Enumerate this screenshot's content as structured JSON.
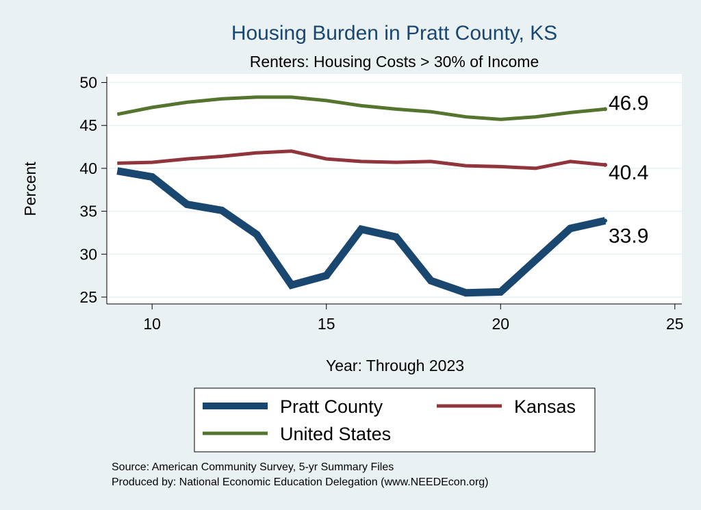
{
  "chart_data": {
    "type": "line",
    "title": "Housing Burden in Pratt County, KS",
    "subtitle": "Renters: Housing Costs > 30% of Income",
    "xlabel": "Year: Through 2023",
    "ylabel": "Percent",
    "xlim": [
      8.7,
      25.2
    ],
    "ylim": [
      24.2,
      51
    ],
    "xticks": [
      10,
      15,
      20,
      25
    ],
    "yticks": [
      25,
      30,
      35,
      40,
      45,
      50
    ],
    "grid": true,
    "x": [
      9,
      10,
      11,
      12,
      13,
      14,
      15,
      16,
      17,
      18,
      19,
      20,
      21,
      22,
      23
    ],
    "series": [
      {
        "name": "Pratt County",
        "color": "#1a476f",
        "values": [
          39.7,
          39.0,
          35.8,
          35.1,
          32.3,
          26.4,
          27.5,
          32.9,
          32.0,
          26.9,
          25.5,
          25.6,
          29.3,
          33.0,
          33.9
        ],
        "end_label": "33.9"
      },
      {
        "name": "Kansas",
        "color": "#90353b",
        "values": [
          40.6,
          40.7,
          41.1,
          41.4,
          41.8,
          42.0,
          41.1,
          40.8,
          40.7,
          40.8,
          40.3,
          40.2,
          40.0,
          40.8,
          40.4
        ],
        "end_label": "40.4"
      },
      {
        "name": "United States",
        "color": "#55752f",
        "values": [
          46.3,
          47.1,
          47.7,
          48.1,
          48.3,
          48.3,
          47.9,
          47.3,
          46.9,
          46.6,
          46.0,
          45.7,
          46.0,
          46.5,
          46.9
        ],
        "end_label": "46.9"
      }
    ],
    "legend_position": "bottom",
    "notes": [
      "Source: American Community Survey, 5-yr Summary Files",
      "Produced by: National Economic Education Delegation (www.NEEDEcon.org)"
    ]
  },
  "colors": {
    "background": "#eaf1f3",
    "plot_background": "#ffffff",
    "grid": "#eaf2f3",
    "title": "#1a476f"
  }
}
